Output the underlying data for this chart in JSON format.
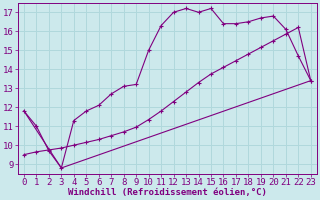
{
  "background_color": "#cce9ec",
  "grid_color": "#b0d8dc",
  "line_color": "#800080",
  "xlabel": "Windchill (Refroidissement éolien,°C)",
  "xlim": [
    -0.5,
    23.5
  ],
  "ylim": [
    8.5,
    17.5
  ],
  "xticks": [
    0,
    1,
    2,
    3,
    4,
    5,
    6,
    7,
    8,
    9,
    10,
    11,
    12,
    13,
    14,
    15,
    16,
    17,
    18,
    19,
    20,
    21,
    22,
    23
  ],
  "yticks": [
    9,
    10,
    11,
    12,
    13,
    14,
    15,
    16,
    17
  ],
  "line1_x": [
    0,
    1,
    2,
    3,
    4,
    5,
    6,
    7,
    8,
    9,
    10,
    11,
    12,
    13,
    14,
    15,
    16,
    17,
    18,
    19,
    20,
    21,
    22,
    23
  ],
  "line1_y": [
    11.8,
    11.0,
    9.7,
    8.8,
    11.3,
    11.8,
    12.1,
    12.7,
    13.1,
    13.2,
    15.0,
    16.3,
    17.0,
    17.2,
    17.0,
    17.2,
    16.4,
    16.4,
    16.5,
    16.7,
    16.8,
    16.1,
    14.7,
    13.4
  ],
  "line2_x": [
    0,
    3,
    23
  ],
  "line2_y": [
    11.8,
    8.8,
    13.4
  ],
  "line3_x": [
    0,
    1,
    2,
    3,
    4,
    5,
    6,
    7,
    8,
    9,
    10,
    11,
    12,
    13,
    14,
    15,
    16,
    17,
    18,
    19,
    20,
    21,
    22,
    23
  ],
  "line3_y": [
    9.5,
    9.65,
    9.75,
    9.85,
    10.0,
    10.15,
    10.3,
    10.5,
    10.7,
    10.95,
    11.35,
    11.8,
    12.3,
    12.8,
    13.3,
    13.75,
    14.1,
    14.45,
    14.8,
    15.15,
    15.5,
    15.85,
    16.2,
    13.4
  ],
  "font_size_xlabel": 6.5,
  "font_size_tick": 6.5
}
